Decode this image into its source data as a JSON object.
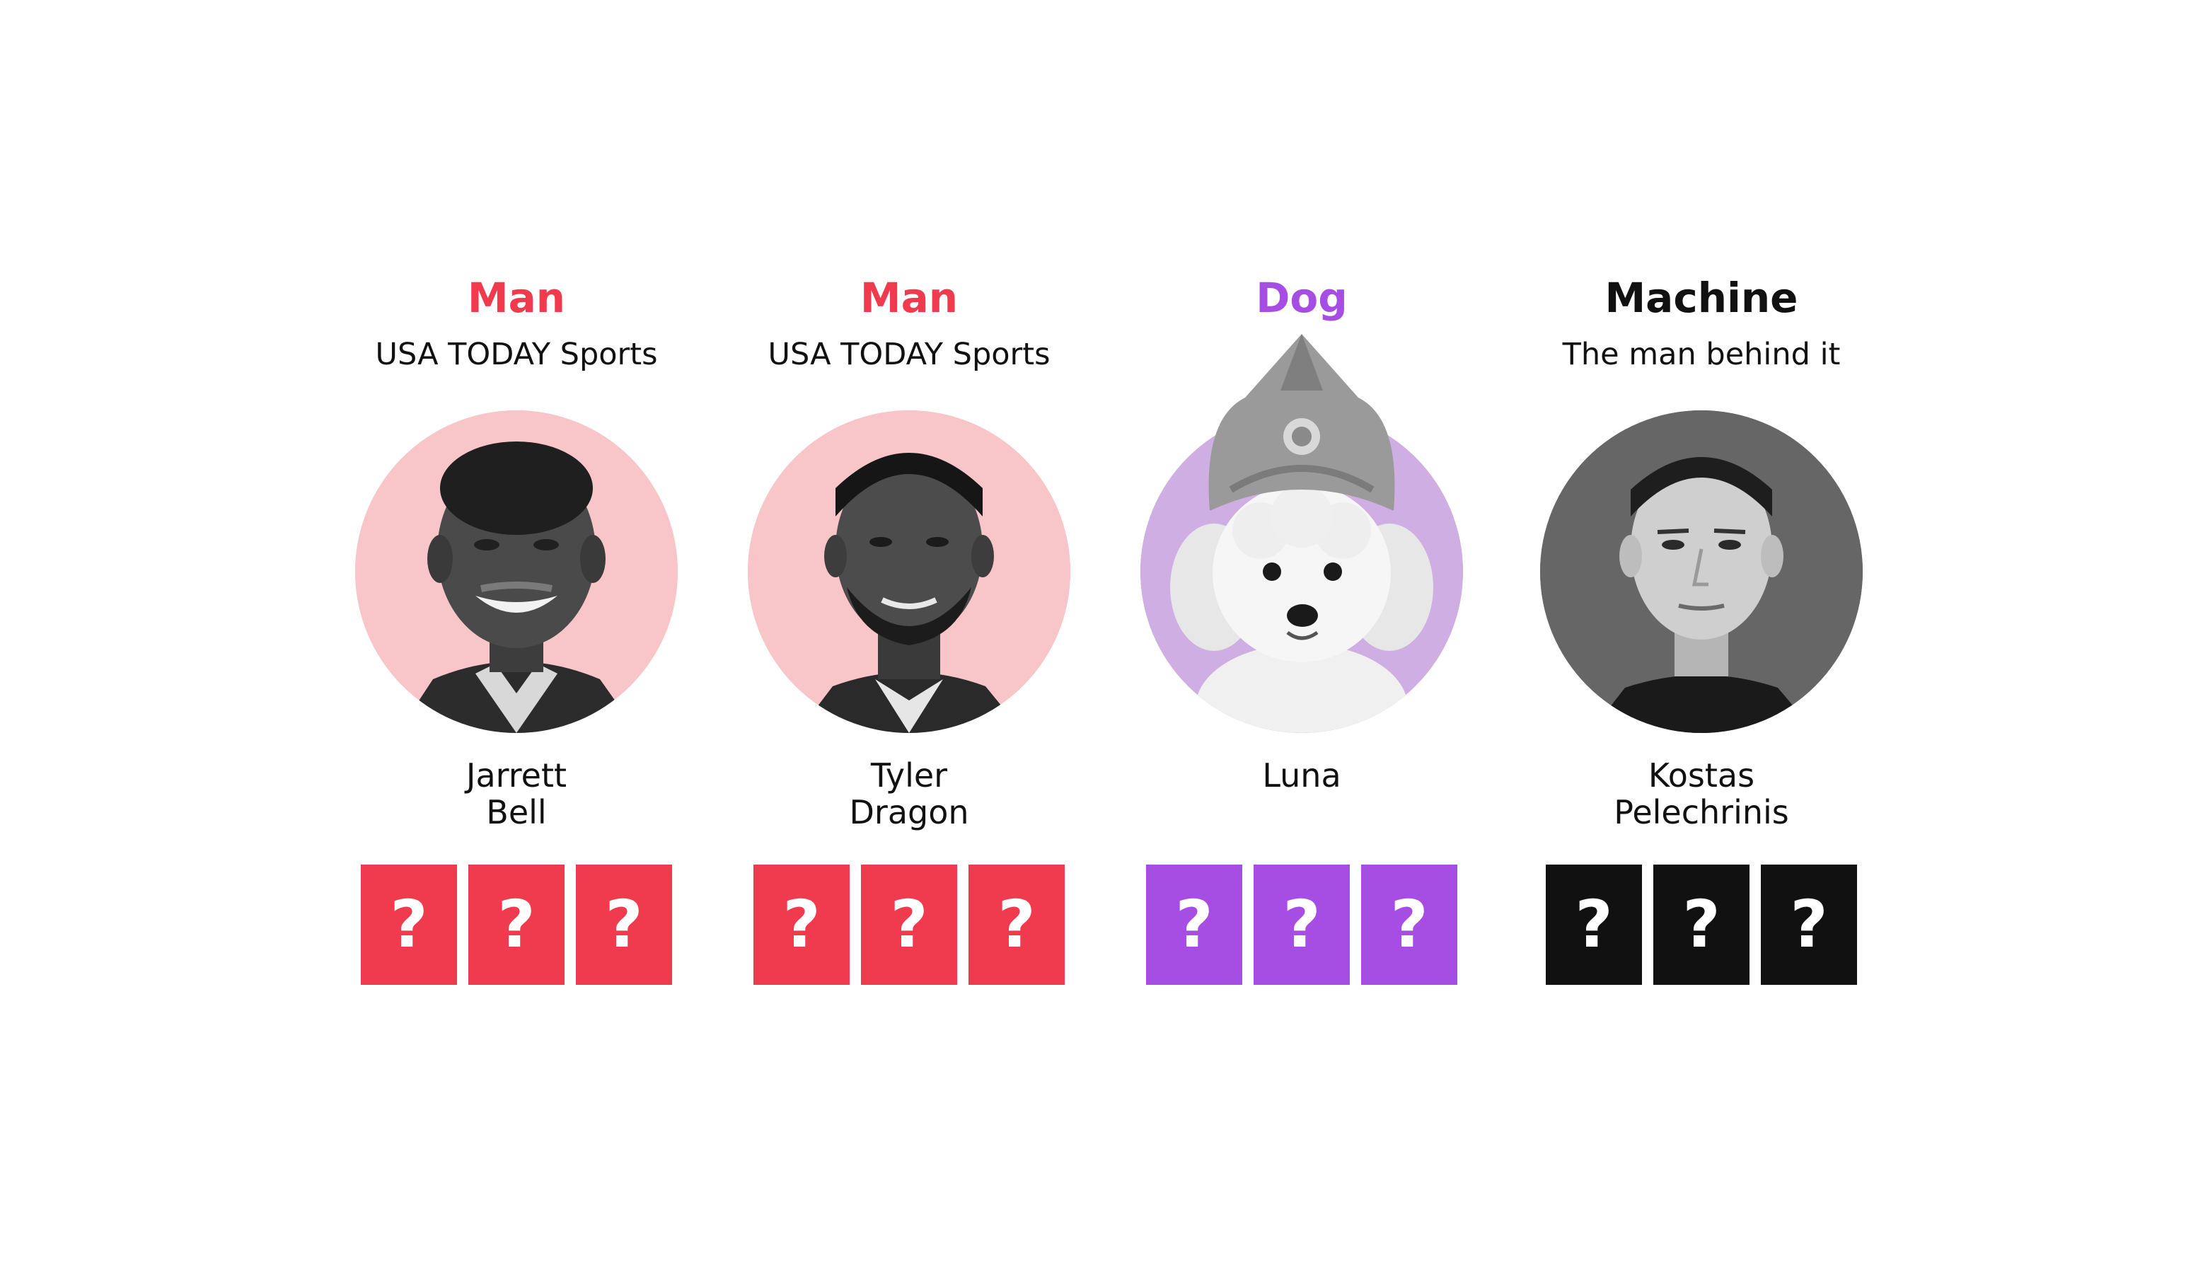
{
  "cards": [
    {
      "category": "Man",
      "category_color": "#ef3b4d",
      "subtitle": "USA TODAY Sports",
      "name_first": "Jarrett",
      "name_last": "Bell",
      "avatar_bg": "#f8c6c8",
      "avatar_icon": "portrait-jarrett-bell",
      "boxes": [
        "?",
        "?",
        "?"
      ],
      "box_color": "#ef3b4d"
    },
    {
      "category": "Man",
      "category_color": "#ef3b4d",
      "subtitle": "USA TODAY Sports",
      "name_first": "Tyler",
      "name_last": "Dragon",
      "avatar_bg": "#f8c6c8",
      "avatar_icon": "portrait-tyler-dragon",
      "boxes": [
        "?",
        "?",
        "?"
      ],
      "box_color": "#ef3b4d"
    },
    {
      "category": "Dog",
      "category_color": "#a64ee4",
      "subtitle": "",
      "name_first": "Luna",
      "name_last": "",
      "avatar_bg": "#cfaee3",
      "avatar_icon": "dog-luna-portrait",
      "boxes": [
        "?",
        "?",
        "?"
      ],
      "box_color": "#a64ee4"
    },
    {
      "category": "Machine",
      "category_color": "#111111",
      "subtitle": "The man behind it",
      "name_first": "Kostas",
      "name_last": "Pelechrinis",
      "avatar_bg": "#666666",
      "avatar_icon": "portrait-kostas-pelechrinis",
      "boxes": [
        "?",
        "?",
        "?"
      ],
      "box_color": "#111111"
    }
  ]
}
